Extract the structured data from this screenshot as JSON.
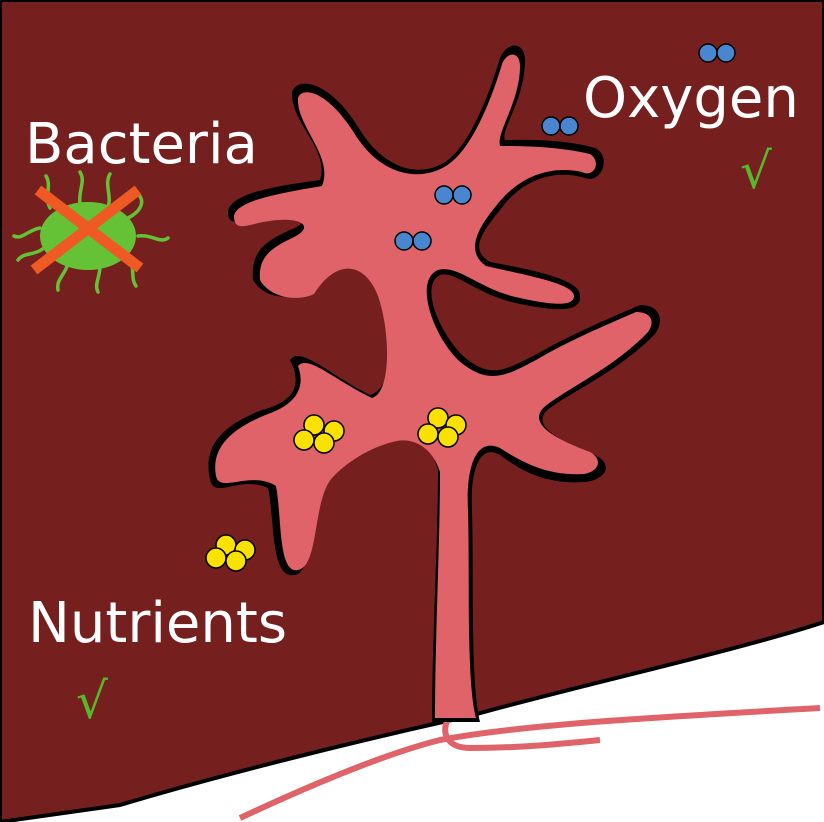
{
  "labels": {
    "bacteria": "Bacteria",
    "oxygen": "Oxygen",
    "nutrients": "Nutrients"
  },
  "marks": {
    "check": "√"
  },
  "colors": {
    "tissue": "#75201F",
    "villus": "#E0636A",
    "outline": "#000000",
    "oxygen": "#4A86CF",
    "nutrient": "#FBE100",
    "bacteria_body": "#65C236",
    "cross": "#EF5A24",
    "check": "#57B829",
    "background": "#FFFFFF"
  },
  "icons": {
    "bacteria": "bacteria-icon",
    "cross": "cross-out-icon",
    "oxygen": "oxygen-molecule-icon",
    "nutrient": "nutrient-cluster-icon",
    "check": "check-mark-icon"
  }
}
